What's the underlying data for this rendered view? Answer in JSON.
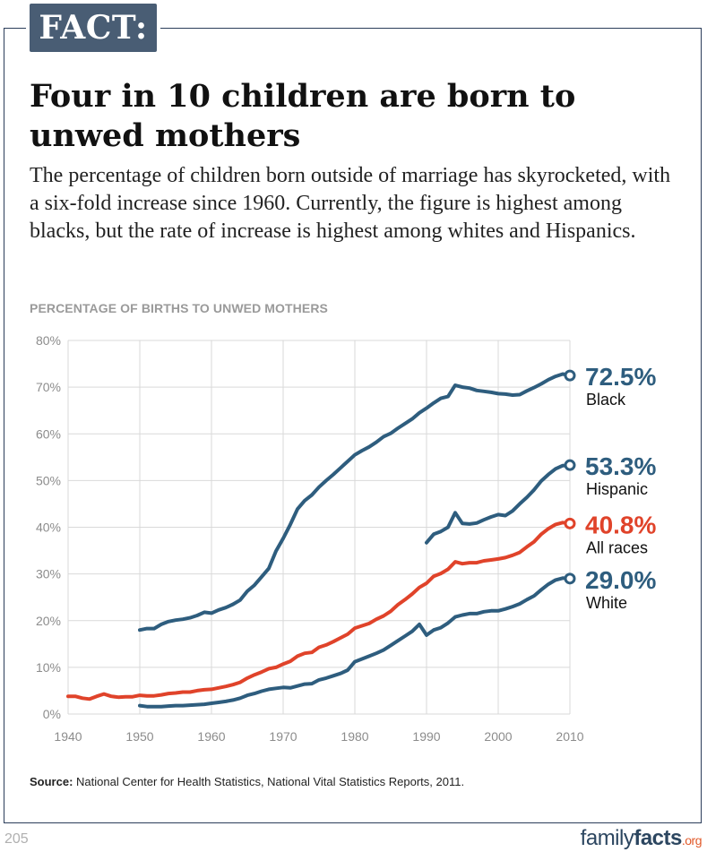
{
  "badge": "FACT:",
  "headline": "Four in 10 children are born to unwed mothers",
  "intro": "The percentage of children born outside of marriage has skyrocketed, with a six-fold increase since 1960. Currently, the figure is highest among blacks, but the rate of increase is highest among whites and Hispanics.",
  "chart_title": "PERCENTAGE OF BIRTHS TO UNWED MOTHERS",
  "source": {
    "label": "Source:",
    "text": " National Center for Health Statistics, National Vital Statistics Reports, 2011."
  },
  "page_number": "205",
  "logo": {
    "part1": "family",
    "part2": "facts",
    "part3": ".org"
  },
  "colors": {
    "blue": "#2e5d7e",
    "red": "#e0432a",
    "grid": "#d9d9d9",
    "axis_text": "#8c8c8c"
  },
  "chart_data": {
    "type": "line",
    "title": "PERCENTAGE OF BIRTHS TO UNWED MOTHERS",
    "xlim": [
      1940,
      2010
    ],
    "ylim": [
      0,
      80
    ],
    "x_ticks": [
      "1940",
      "1950",
      "1960",
      "1970",
      "1980",
      "1990",
      "2000",
      "2010"
    ],
    "y_ticks": [
      "0%",
      "10%",
      "20%",
      "30%",
      "40%",
      "50%",
      "60%",
      "70%",
      "80%"
    ],
    "grid": true,
    "series": [
      {
        "name": "Black",
        "end_label": "72.5%",
        "color": "#2e5d7e",
        "x": [
          1950,
          1951,
          1952,
          1953,
          1954,
          1955,
          1956,
          1957,
          1958,
          1959,
          1960,
          1961,
          1962,
          1963,
          1964,
          1965,
          1966,
          1967,
          1968,
          1969,
          1970,
          1971,
          1972,
          1973,
          1974,
          1975,
          1976,
          1977,
          1978,
          1979,
          1980,
          1981,
          1982,
          1983,
          1984,
          1985,
          1986,
          1987,
          1988,
          1989,
          1990,
          1991,
          1992,
          1993,
          1994,
          1995,
          1996,
          1997,
          1998,
          1999,
          2000,
          2001,
          2002,
          2003,
          2004,
          2005,
          2006,
          2007,
          2008,
          2009,
          2010
        ],
        "y": [
          18.0,
          18.3,
          18.3,
          19.2,
          19.8,
          20.1,
          20.3,
          20.6,
          21.1,
          21.8,
          21.6,
          22.3,
          22.8,
          23.5,
          24.4,
          26.3,
          27.6,
          29.4,
          31.2,
          34.9,
          37.6,
          40.6,
          43.9,
          45.7,
          46.9,
          48.6,
          50.0,
          51.3,
          52.7,
          54.1,
          55.5,
          56.4,
          57.2,
          58.2,
          59.4,
          60.1,
          61.2,
          62.2,
          63.2,
          64.5,
          65.5,
          66.6,
          67.6,
          68.0,
          70.4,
          70.0,
          69.8,
          69.3,
          69.1,
          68.9,
          68.6,
          68.5,
          68.3,
          68.4,
          69.2,
          69.9,
          70.7,
          71.6,
          72.3,
          72.8,
          72.5
        ]
      },
      {
        "name": "Hispanic",
        "end_label": "53.3%",
        "color": "#2e5d7e",
        "x": [
          1990,
          1991,
          1992,
          1993,
          1994,
          1995,
          1996,
          1997,
          1998,
          1999,
          2000,
          2001,
          2002,
          2003,
          2004,
          2005,
          2006,
          2007,
          2008,
          2009,
          2010
        ],
        "y": [
          36.7,
          38.5,
          39.1,
          40.0,
          43.1,
          40.8,
          40.7,
          40.9,
          41.6,
          42.2,
          42.7,
          42.5,
          43.5,
          45.0,
          46.4,
          48.0,
          49.9,
          51.3,
          52.5,
          53.2,
          53.3
        ]
      },
      {
        "name": "All races",
        "end_label": "40.8%",
        "color": "#e0432a",
        "x": [
          1940,
          1941,
          1942,
          1943,
          1944,
          1945,
          1946,
          1947,
          1948,
          1949,
          1950,
          1951,
          1952,
          1953,
          1954,
          1955,
          1956,
          1957,
          1958,
          1959,
          1960,
          1961,
          1962,
          1963,
          1964,
          1965,
          1966,
          1967,
          1968,
          1969,
          1970,
          1971,
          1972,
          1973,
          1974,
          1975,
          1976,
          1977,
          1978,
          1979,
          1980,
          1981,
          1982,
          1983,
          1984,
          1985,
          1986,
          1987,
          1988,
          1989,
          1990,
          1991,
          1992,
          1993,
          1994,
          1995,
          1996,
          1997,
          1998,
          1999,
          2000,
          2001,
          2002,
          2003,
          2004,
          2005,
          2006,
          2007,
          2008,
          2009,
          2010
        ],
        "y": [
          3.8,
          3.8,
          3.4,
          3.2,
          3.8,
          4.3,
          3.8,
          3.6,
          3.7,
          3.7,
          4.0,
          3.9,
          3.9,
          4.1,
          4.4,
          4.5,
          4.7,
          4.7,
          5.0,
          5.2,
          5.3,
          5.6,
          5.9,
          6.3,
          6.8,
          7.7,
          8.4,
          9.0,
          9.7,
          10.0,
          10.7,
          11.3,
          12.4,
          13.0,
          13.2,
          14.3,
          14.8,
          15.5,
          16.3,
          17.1,
          18.4,
          18.9,
          19.4,
          20.3,
          21.0,
          22.0,
          23.4,
          24.5,
          25.7,
          27.1,
          28.0,
          29.5,
          30.1,
          31.0,
          32.6,
          32.2,
          32.4,
          32.4,
          32.8,
          33.0,
          33.2,
          33.5,
          34.0,
          34.6,
          35.8,
          36.9,
          38.5,
          39.7,
          40.6,
          41.0,
          40.8
        ]
      },
      {
        "name": "White",
        "end_label": "29.0%",
        "color": "#2e5d7e",
        "x": [
          1950,
          1951,
          1952,
          1953,
          1954,
          1955,
          1956,
          1957,
          1958,
          1959,
          1960,
          1961,
          1962,
          1963,
          1964,
          1965,
          1966,
          1967,
          1968,
          1969,
          1970,
          1971,
          1972,
          1973,
          1974,
          1975,
          1976,
          1977,
          1978,
          1979,
          1980,
          1981,
          1982,
          1983,
          1984,
          1985,
          1986,
          1987,
          1988,
          1989,
          1990,
          1991,
          1992,
          1993,
          1994,
          1995,
          1996,
          1997,
          1998,
          1999,
          2000,
          2001,
          2002,
          2003,
          2004,
          2005,
          2006,
          2007,
          2008,
          2009,
          2010
        ],
        "y": [
          1.8,
          1.6,
          1.6,
          1.6,
          1.7,
          1.8,
          1.8,
          1.9,
          2.0,
          2.1,
          2.3,
          2.5,
          2.7,
          3.0,
          3.4,
          4.0,
          4.4,
          4.9,
          5.3,
          5.5,
          5.7,
          5.6,
          6.0,
          6.4,
          6.5,
          7.3,
          7.7,
          8.2,
          8.7,
          9.4,
          11.2,
          11.8,
          12.4,
          13.0,
          13.7,
          14.7,
          15.7,
          16.7,
          17.7,
          19.2,
          16.9,
          18.0,
          18.5,
          19.5,
          20.8,
          21.2,
          21.5,
          21.5,
          21.9,
          22.1,
          22.1,
          22.5,
          23.0,
          23.6,
          24.5,
          25.3,
          26.6,
          27.8,
          28.7,
          29.1,
          29.0
        ]
      }
    ]
  }
}
